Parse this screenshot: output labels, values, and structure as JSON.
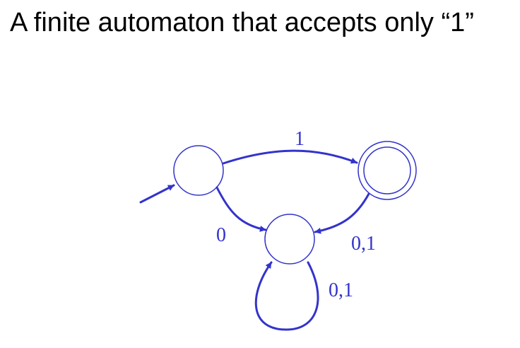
{
  "title": "A finite automaton that accepts only “1”",
  "colors": {
    "ink": "#3333cc",
    "title": "#000000"
  },
  "automaton": {
    "states": [
      {
        "id": "start",
        "accepting": false,
        "initial": true
      },
      {
        "id": "accept",
        "accepting": true,
        "initial": false
      },
      {
        "id": "trap",
        "accepting": false,
        "initial": false
      }
    ],
    "transitions": [
      {
        "from": "start",
        "to": "accept",
        "label": "1"
      },
      {
        "from": "start",
        "to": "trap",
        "label": "0"
      },
      {
        "from": "accept",
        "to": "trap",
        "label": "0,1"
      },
      {
        "from": "trap",
        "to": "trap",
        "label": "0,1"
      }
    ]
  }
}
